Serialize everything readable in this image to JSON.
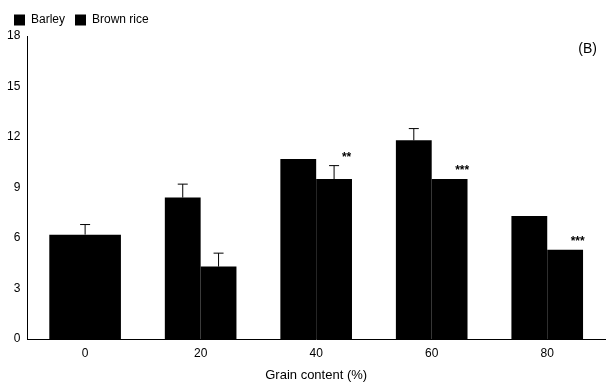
{
  "chart_data": {
    "type": "bar",
    "title": "(B)",
    "x_label": "Grain content (%)",
    "categories": [
      "0",
      "20",
      "40",
      "60",
      "80"
    ],
    "series": [
      {
        "name": "Barley",
        "color": "#000000",
        "values": [
          6.2,
          8.4,
          10.7,
          11.8,
          7.3
        ],
        "errors": [
          0.6,
          0.8,
          null,
          0.7,
          null
        ],
        "annotations": [
          null,
          null,
          null,
          null,
          null
        ]
      },
      {
        "name": "Brown rice",
        "color": "#000000",
        "values": [
          null,
          4.3,
          9.5,
          9.5,
          5.3
        ],
        "errors": [
          null,
          0.8,
          0.8,
          null,
          null
        ],
        "annotations": [
          null,
          null,
          "**",
          "***",
          "***"
        ]
      }
    ],
    "ylim": [
      0,
      18
    ],
    "yticks": [
      0,
      3,
      6,
      9,
      12,
      15,
      18
    ],
    "grid": false,
    "legend": "upper left"
  }
}
